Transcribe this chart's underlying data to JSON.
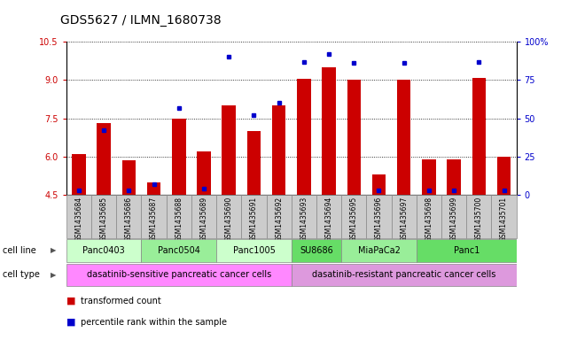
{
  "title": "GDS5627 / ILMN_1680738",
  "samples": [
    "GSM1435684",
    "GSM1435685",
    "GSM1435686",
    "GSM1435687",
    "GSM1435688",
    "GSM1435689",
    "GSM1435690",
    "GSM1435691",
    "GSM1435692",
    "GSM1435693",
    "GSM1435694",
    "GSM1435695",
    "GSM1435696",
    "GSM1435697",
    "GSM1435698",
    "GSM1435699",
    "GSM1435700",
    "GSM1435701"
  ],
  "transformed_count": [
    6.1,
    7.3,
    5.85,
    5.0,
    7.5,
    6.2,
    8.0,
    7.0,
    8.0,
    9.05,
    9.5,
    9.0,
    5.3,
    9.0,
    5.9,
    5.9,
    9.1,
    6.0
  ],
  "percentile_rank": [
    3,
    42,
    3,
    7,
    57,
    4,
    90,
    52,
    60,
    87,
    92,
    86,
    3,
    86,
    3,
    3,
    87,
    3
  ],
  "ymin": 4.5,
  "ymax": 10.5,
  "yticks": [
    4.5,
    6.0,
    7.5,
    9.0,
    10.5
  ],
  "right_yticks": [
    0,
    25,
    50,
    75,
    100
  ],
  "right_yticklabels": [
    "0",
    "25",
    "50",
    "75",
    "100%"
  ],
  "bar_color": "#cc0000",
  "dot_color": "#0000cc",
  "cell_lines": [
    {
      "name": "Panc0403",
      "start": 0,
      "end": 2,
      "color": "#ccffcc"
    },
    {
      "name": "Panc0504",
      "start": 3,
      "end": 5,
      "color": "#99ee99"
    },
    {
      "name": "Panc1005",
      "start": 6,
      "end": 8,
      "color": "#ccffcc"
    },
    {
      "name": "SU8686",
      "start": 9,
      "end": 10,
      "color": "#66dd66"
    },
    {
      "name": "MiaPaCa2",
      "start": 11,
      "end": 13,
      "color": "#99ee99"
    },
    {
      "name": "Panc1",
      "start": 14,
      "end": 17,
      "color": "#66dd66"
    }
  ],
  "cell_types": [
    {
      "name": "dasatinib-sensitive pancreatic cancer cells",
      "start": 0,
      "end": 8,
      "color": "#ff88ff"
    },
    {
      "name": "dasatinib-resistant pancreatic cancer cells",
      "start": 9,
      "end": 17,
      "color": "#dd99dd"
    }
  ],
  "legend_items": [
    {
      "label": "transformed count",
      "color": "#cc0000"
    },
    {
      "label": "percentile rank within the sample",
      "color": "#0000cc"
    }
  ],
  "bar_color_left": "#cc0000",
  "tick_color_right": "#0000cc",
  "title_fontsize": 10,
  "tick_fontsize": 7,
  "sample_fontsize": 5.5,
  "bar_width": 0.55,
  "base_value": 4.5,
  "sample_bg_color": "#cccccc",
  "border_color": "#888888"
}
